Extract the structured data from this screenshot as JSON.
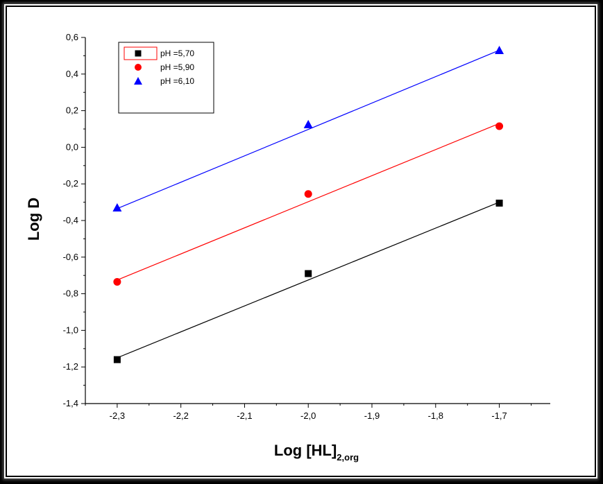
{
  "chart_data": {
    "type": "scatter",
    "xlabel": "Log [HL]",
    "xlabel_sub": "2,org",
    "ylabel": "Log D",
    "xlim": [
      -2.35,
      -1.62
    ],
    "ylim": [
      -1.4,
      0.6
    ],
    "xticks": [
      -2.3,
      -2.2,
      -2.1,
      -2.0,
      -1.9,
      -1.8,
      -1.7
    ],
    "xtick_labels": [
      "-2,3",
      "-2,2",
      "-2,1",
      "-2,0",
      "-1,9",
      "-1,8",
      "-1,7"
    ],
    "yticks": [
      -1.4,
      -1.2,
      -1.0,
      -0.8,
      -0.6,
      -0.4,
      -0.2,
      0.0,
      0.2,
      0.4,
      0.6
    ],
    "ytick_labels": [
      "-1,4",
      "-1,2",
      "-1,0",
      "-0,8",
      "-0,6",
      "-0,4",
      "-0,2",
      "0,0",
      "0,2",
      "0,4",
      "0,6"
    ],
    "legend_position": "top-left",
    "grid": false,
    "series": [
      {
        "name": "pH =5,70",
        "marker": "square",
        "color": "#000000",
        "x": [
          -2.3,
          -2.0,
          -1.7
        ],
        "y": [
          -1.16,
          -0.69,
          -0.305
        ],
        "fit": [
          [
            -2.3,
            -1.15
          ],
          [
            -1.7,
            -0.3
          ]
        ]
      },
      {
        "name": "pH =5,90",
        "marker": "circle",
        "color": "#ff0000",
        "x": [
          -2.3,
          -2.0,
          -1.7
        ],
        "y": [
          -0.735,
          -0.255,
          0.115
        ],
        "fit": [
          [
            -2.3,
            -0.725
          ],
          [
            -1.7,
            0.13
          ]
        ]
      },
      {
        "name": "pH =6,10",
        "marker": "triangle",
        "color": "#0000ff",
        "x": [
          -2.3,
          -2.0,
          -1.7
        ],
        "y": [
          -0.33,
          0.125,
          0.53
        ],
        "fit": [
          [
            -2.3,
            -0.335
          ],
          [
            -1.7,
            0.53
          ]
        ]
      }
    ]
  }
}
